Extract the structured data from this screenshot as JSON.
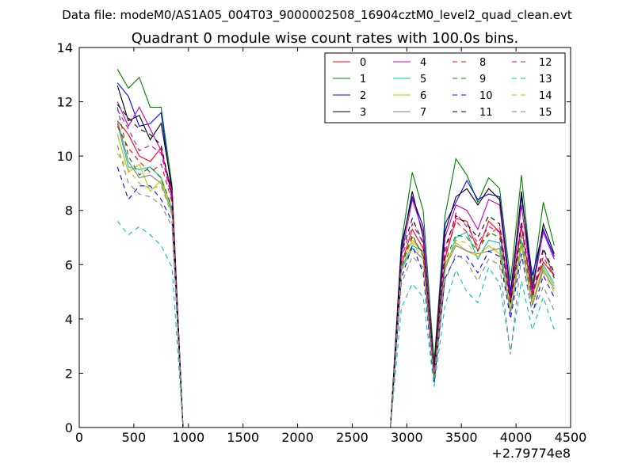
{
  "chart_data": {
    "type": "line",
    "suptitle": "Data file: modeM0/AS1A05_004T03_9000002508_16904cztM0_level2_quad_clean.evt",
    "title": "Quadrant 0 module wise count rates with 100.0s bins.",
    "xlabel": "",
    "ylabel": "",
    "x_offset_label": "+2.79774e8",
    "xlim": [
      0,
      4500
    ],
    "ylim": [
      0,
      14
    ],
    "x_ticks": [
      0,
      500,
      1000,
      1500,
      2000,
      2500,
      3000,
      3500,
      4000,
      4500
    ],
    "y_ticks": [
      0,
      2,
      4,
      6,
      8,
      10,
      12,
      14
    ],
    "x_tick_labels": [
      "0",
      "500",
      "1000",
      "1500",
      "2000",
      "2500",
      "3000",
      "3500",
      "4000",
      "4500"
    ],
    "y_tick_labels": [
      "0",
      "2",
      "4",
      "6",
      "8",
      "10",
      "12",
      "14"
    ],
    "legend_position": "top-right",
    "grid": false,
    "x": [
      350,
      450,
      550,
      650,
      750,
      850,
      950,
      1050,
      1150,
      1250,
      1350,
      1450,
      1550,
      1650,
      1750,
      1850,
      1950,
      2050,
      2150,
      2250,
      2350,
      2450,
      2550,
      2650,
      2750,
      2850,
      2950,
      3050,
      3150,
      3250,
      3350,
      3450,
      3550,
      3650,
      3750,
      3850,
      3950,
      4050,
      4150,
      4250,
      4350
    ],
    "series": [
      {
        "name": "0",
        "color": "#ff0000",
        "dashed": false,
        "values": [
          11.3,
          10.8,
          10.0,
          9.8,
          10.3,
          8.5,
          0,
          0,
          0,
          0,
          0,
          0,
          0,
          0,
          0,
          0,
          0,
          0,
          0,
          0,
          0,
          0,
          0,
          0,
          0,
          0,
          6.0,
          7.3,
          6.6,
          2.0,
          6.2,
          7.7,
          7.6,
          6.5,
          7.6,
          7.2,
          4.6,
          7.4,
          4.9,
          6.1,
          5.6
        ]
      },
      {
        "name": "1",
        "color": "#008000",
        "dashed": false,
        "values": [
          13.2,
          12.5,
          12.9,
          11.8,
          11.8,
          8.9,
          0,
          0,
          0,
          0,
          0,
          0,
          0,
          0,
          0,
          0,
          0,
          0,
          0,
          0,
          0,
          0,
          0,
          0,
          0,
          0,
          6.8,
          9.4,
          8.0,
          2.4,
          7.8,
          9.9,
          9.3,
          8.3,
          9.2,
          8.8,
          5.4,
          9.3,
          5.3,
          8.3,
          6.7
        ]
      },
      {
        "name": "2",
        "color": "#0000ff",
        "dashed": false,
        "values": [
          12.7,
          12.2,
          11.1,
          11.2,
          11.6,
          8.6,
          0,
          0,
          0,
          0,
          0,
          0,
          0,
          0,
          0,
          0,
          0,
          0,
          0,
          0,
          0,
          0,
          0,
          0,
          0,
          0,
          6.7,
          8.5,
          7.4,
          2.1,
          7.5,
          8.3,
          9.1,
          8.4,
          8.6,
          8.5,
          5.0,
          8.5,
          5.6,
          7.3,
          6.3
        ]
      },
      {
        "name": "3",
        "color": "#000000",
        "dashed": false,
        "values": [
          12.6,
          11.3,
          11.5,
          10.6,
          11.2,
          8.8,
          0,
          0,
          0,
          0,
          0,
          0,
          0,
          0,
          0,
          0,
          0,
          0,
          0,
          0,
          0,
          0,
          0,
          0,
          0,
          0,
          6.5,
          8.7,
          7.0,
          2.2,
          7.2,
          8.5,
          8.8,
          8.2,
          8.8,
          8.4,
          4.8,
          8.7,
          5.1,
          7.5,
          6.4
        ]
      },
      {
        "name": "4",
        "color": "#bf00bf",
        "dashed": false,
        "values": [
          12.0,
          11.1,
          11.8,
          11.0,
          10.2,
          8.7,
          0,
          0,
          0,
          0,
          0,
          0,
          0,
          0,
          0,
          0,
          0,
          0,
          0,
          0,
          0,
          0,
          0,
          0,
          0,
          0,
          6.3,
          8.4,
          7.2,
          2.0,
          7.0,
          8.2,
          8.0,
          7.3,
          8.4,
          8.2,
          4.7,
          8.2,
          5.0,
          7.2,
          6.2
        ]
      },
      {
        "name": "5",
        "color": "#00bfbf",
        "dashed": false,
        "values": [
          11.2,
          9.6,
          9.5,
          9.6,
          9.2,
          8.0,
          0,
          0,
          0,
          0,
          0,
          0,
          0,
          0,
          0,
          0,
          0,
          0,
          0,
          0,
          0,
          0,
          0,
          0,
          0,
          0,
          5.9,
          6.7,
          6.5,
          1.7,
          5.8,
          7.0,
          7.2,
          6.2,
          6.9,
          6.8,
          4.2,
          6.9,
          4.5,
          6.0,
          5.3
        ]
      },
      {
        "name": "6",
        "color": "#bfbf00",
        "dashed": false,
        "values": [
          10.8,
          9.4,
          9.7,
          8.7,
          9.1,
          8.1,
          0,
          0,
          0,
          0,
          0,
          0,
          0,
          0,
          0,
          0,
          0,
          0,
          0,
          0,
          0,
          0,
          0,
          0,
          0,
          0,
          6.0,
          6.9,
          6.4,
          1.8,
          6.0,
          6.8,
          6.5,
          6.3,
          6.7,
          6.4,
          4.3,
          6.8,
          4.6,
          5.9,
          5.2
        ]
      },
      {
        "name": "7",
        "color": "#808080",
        "dashed": false,
        "values": [
          11.3,
          9.8,
          9.2,
          9.3,
          9.0,
          7.9,
          0,
          0,
          0,
          0,
          0,
          0,
          0,
          0,
          0,
          0,
          0,
          0,
          0,
          0,
          0,
          0,
          0,
          0,
          0,
          0,
          5.8,
          6.6,
          6.2,
          1.8,
          5.9,
          6.7,
          6.5,
          6.4,
          6.5,
          6.6,
          4.2,
          6.7,
          4.5,
          5.8,
          5.1
        ]
      },
      {
        "name": "8",
        "color": "#ff0000",
        "dashed": true,
        "values": [
          11.1,
          10.3,
          9.8,
          9.4,
          9.7,
          8.3,
          0,
          0,
          0,
          0,
          0,
          0,
          0,
          0,
          0,
          0,
          0,
          0,
          0,
          0,
          0,
          0,
          0,
          0,
          0,
          0,
          6.1,
          7.0,
          6.4,
          1.9,
          6.3,
          7.6,
          7.2,
          6.7,
          7.1,
          7.4,
          4.6,
          7.4,
          4.8,
          6.3,
          5.5
        ]
      },
      {
        "name": "9",
        "color": "#008000",
        "dashed": true,
        "values": [
          11.8,
          10.0,
          9.3,
          9.6,
          9.2,
          8.1,
          0,
          0,
          0,
          0,
          0,
          0,
          0,
          0,
          0,
          0,
          0,
          0,
          0,
          0,
          0,
          0,
          0,
          0,
          0,
          0,
          5.9,
          7.1,
          6.3,
          1.9,
          6.1,
          7.1,
          7.0,
          6.5,
          7.2,
          7.0,
          4.5,
          7.1,
          4.7,
          6.6,
          5.5
        ]
      },
      {
        "name": "10",
        "color": "#0000ff",
        "dashed": true,
        "values": [
          9.6,
          8.4,
          8.9,
          8.9,
          8.4,
          7.6,
          0,
          0,
          0,
          0,
          0,
          0,
          0,
          0,
          0,
          0,
          0,
          0,
          0,
          0,
          0,
          0,
          0,
          0,
          0,
          0,
          5.5,
          6.7,
          5.7,
          1.6,
          5.5,
          6.3,
          6.3,
          5.7,
          6.5,
          6.3,
          4.0,
          6.4,
          4.2,
          5.6,
          4.8
        ]
      },
      {
        "name": "11",
        "color": "#000000",
        "dashed": true,
        "values": [
          11.9,
          11.4,
          11.0,
          10.8,
          10.4,
          8.5,
          0,
          0,
          0,
          0,
          0,
          0,
          0,
          0,
          0,
          0,
          0,
          0,
          0,
          0,
          0,
          0,
          0,
          0,
          0,
          0,
          6.4,
          7.7,
          6.8,
          2.1,
          6.6,
          7.8,
          7.5,
          7.0,
          7.8,
          7.5,
          4.6,
          7.6,
          4.9,
          6.6,
          5.7
        ]
      },
      {
        "name": "12",
        "color": "#bf00bf",
        "dashed": true,
        "values": [
          11.7,
          11.0,
          10.2,
          10.4,
          10.1,
          8.4,
          0,
          0,
          0,
          0,
          0,
          0,
          0,
          0,
          0,
          0,
          0,
          0,
          0,
          0,
          0,
          0,
          0,
          0,
          0,
          0,
          6.2,
          7.5,
          6.8,
          2.0,
          6.4,
          7.9,
          7.4,
          6.8,
          7.4,
          7.2,
          4.7,
          7.5,
          4.9,
          6.5,
          5.6
        ]
      },
      {
        "name": "13",
        "color": "#00bfbf",
        "dashed": true,
        "values": [
          7.6,
          7.1,
          7.4,
          7.1,
          6.7,
          5.9,
          0,
          0,
          0,
          0,
          0,
          0,
          0,
          0,
          0,
          0,
          0,
          0,
          0,
          0,
          0,
          0,
          0,
          0,
          0,
          0,
          4.4,
          5.3,
          4.8,
          1.5,
          4.5,
          5.8,
          5.0,
          4.6,
          5.9,
          5.3,
          2.8,
          5.4,
          3.6,
          4.8,
          3.6
        ]
      },
      {
        "name": "14",
        "color": "#bfbf00",
        "dashed": true,
        "values": [
          10.1,
          9.5,
          9.0,
          8.8,
          8.9,
          7.8,
          0,
          0,
          0,
          0,
          0,
          0,
          0,
          0,
          0,
          0,
          0,
          0,
          0,
          0,
          0,
          0,
          0,
          0,
          0,
          0,
          5.7,
          6.8,
          6.2,
          1.8,
          5.8,
          6.9,
          6.8,
          6.3,
          6.7,
          6.5,
          4.4,
          6.7,
          4.6,
          5.7,
          5.0
        ]
      },
      {
        "name": "15",
        "color": "#808080",
        "dashed": true,
        "values": [
          10.4,
          9.0,
          8.6,
          8.5,
          8.2,
          7.4,
          0,
          0,
          0,
          0,
          0,
          0,
          0,
          0,
          0,
          0,
          0,
          0,
          0,
          0,
          0,
          0,
          0,
          0,
          0,
          0,
          5.3,
          6.3,
          5.9,
          1.7,
          5.4,
          6.4,
          6.1,
          5.4,
          6.2,
          6.0,
          2.7,
          6.3,
          4.2,
          5.2,
          4.3
        ]
      }
    ]
  }
}
